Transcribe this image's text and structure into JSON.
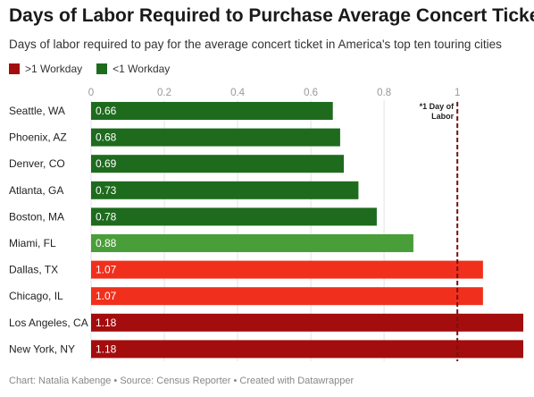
{
  "chart_data": {
    "type": "bar",
    "orientation": "horizontal",
    "title": "Days of Labor Required to Purchase Average Concert Ticket",
    "subtitle": "Days of labor required to pay for the average concert ticket in America's top ten touring cities",
    "categories": [
      "Seattle, WA",
      "Phoenix, AZ",
      "Denver, CO",
      "Atlanta, GA",
      "Boston, MA",
      "Miami, FL",
      "Dallas, TX",
      "Chicago, IL",
      "Los Angeles, CA",
      "New York, NY"
    ],
    "values": [
      0.66,
      0.68,
      0.69,
      0.73,
      0.78,
      0.88,
      1.07,
      1.07,
      1.18,
      1.18
    ],
    "value_labels": [
      "0.66",
      "0.68",
      "0.69",
      "0.73",
      "0.78",
      "0.88",
      "1.07",
      "1.07",
      "1.18",
      "1.18"
    ],
    "bar_colors": [
      "#1e6b1e",
      "#1e6b1e",
      "#1e6b1e",
      "#1e6b1e",
      "#1e6b1e",
      "#4a9e3a",
      "#f0301c",
      "#f0301c",
      "#a30d0d",
      "#a30d0d"
    ],
    "xlim": [
      0,
      1.18
    ],
    "x_ticks": [
      0,
      0.2,
      0.4,
      0.6,
      0.8,
      1
    ],
    "x_tick_labels": [
      "0",
      "0.2",
      "0.4",
      "0.6",
      "0.8",
      "1"
    ],
    "legend": [
      {
        "label": ">1 Workday",
        "color": "#a30d0d"
      },
      {
        "label": "<1 Workday",
        "color": "#1e6b1e"
      }
    ],
    "legend_position": "top-left",
    "reference_line": {
      "x": 1,
      "label_line1": "*1 Day of",
      "label_line2": "Labor",
      "color": "#7a1010"
    },
    "grid": true
  },
  "footer": "Chart: Natalia Kabenge • Source: Census Reporter • Created with Datawrapper"
}
